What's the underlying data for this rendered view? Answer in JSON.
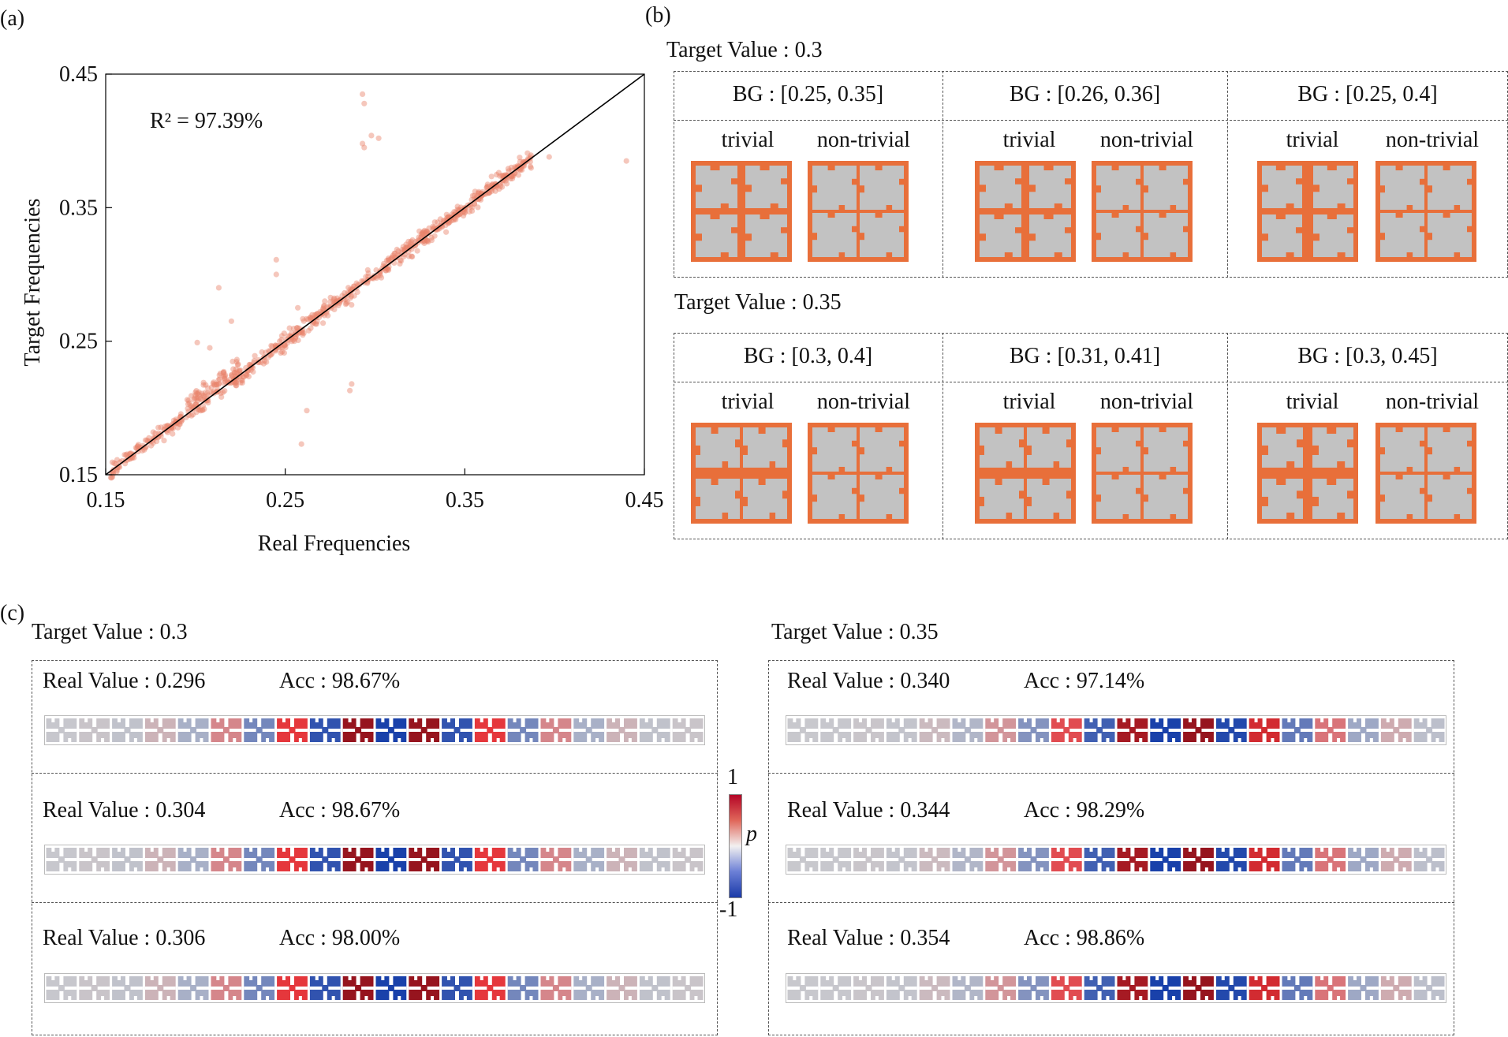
{
  "panels": {
    "a": "(a)",
    "b": "(b)",
    "c": "(c)"
  },
  "chart_data": {
    "type": "scatter",
    "title": "",
    "xlabel": "Real Frequencies",
    "ylabel": "Target Frequencies",
    "xlim": [
      0.15,
      0.45
    ],
    "ylim": [
      0.15,
      0.45
    ],
    "xticks": [
      "0.15",
      "0.25",
      "0.35",
      "0.45"
    ],
    "yticks": [
      "0.15",
      "0.25",
      "0.35",
      "0.45"
    ],
    "annotation_label": "R² = 97.39%",
    "reference_line": "y = x",
    "point_color": "#e8836a",
    "line_color": "#000000",
    "outliers": [
      [
        0.293,
        0.435
      ],
      [
        0.294,
        0.428
      ],
      [
        0.293,
        0.398
      ],
      [
        0.294,
        0.395
      ],
      [
        0.298,
        0.404
      ],
      [
        0.302,
        0.402
      ],
      [
        0.213,
        0.29
      ],
      [
        0.245,
        0.311
      ],
      [
        0.245,
        0.3
      ],
      [
        0.262,
        0.198
      ],
      [
        0.259,
        0.173
      ],
      [
        0.287,
        0.218
      ],
      [
        0.286,
        0.213
      ],
      [
        0.257,
        0.275
      ],
      [
        0.44,
        0.385
      ],
      [
        0.397,
        0.388
      ],
      [
        0.201,
        0.249
      ],
      [
        0.208,
        0.245
      ],
      [
        0.272,
        0.28
      ],
      [
        0.22,
        0.265
      ]
    ]
  },
  "panel_b": {
    "cell_titles": [
      "trivial",
      "non-trivial"
    ],
    "groups": [
      {
        "title": "Target Value : 0.3",
        "bgs": [
          "BG : [0.25, 0.35]",
          "BG : [0.26, 0.36]",
          "BG : [0.25, 0.4]"
        ]
      },
      {
        "title": "Target Value : 0.35",
        "bgs": [
          "BG : [0.3, 0.4]",
          "BG : [0.31, 0.41]",
          "BG : [0.3, 0.45]"
        ]
      }
    ],
    "tile_colors": {
      "orange": "#e86f3a",
      "gray": "#c2c2c2"
    }
  },
  "panel_c": {
    "groups": [
      {
        "title": "Target Value : 0.3",
        "rows": [
          {
            "real": "Real Value : 0.296",
            "acc": "Acc : 98.67%"
          },
          {
            "real": "Real Value : 0.304",
            "acc": "Acc : 98.67%"
          },
          {
            "real": "Real Value : 0.306",
            "acc": "Acc : 98.00%"
          }
        ]
      },
      {
        "title": "Target Value : 0.35",
        "rows": [
          {
            "real": "Real Value : 0.340",
            "acc": "Acc : 97.14%"
          },
          {
            "real": "Real Value : 0.344",
            "acc": "Acc : 98.29%"
          },
          {
            "real": "Real Value : 0.354",
            "acc": "Acc : 98.86%"
          }
        ]
      }
    ],
    "colorbar": {
      "max": "1",
      "min": "-1",
      "label": "p"
    }
  }
}
